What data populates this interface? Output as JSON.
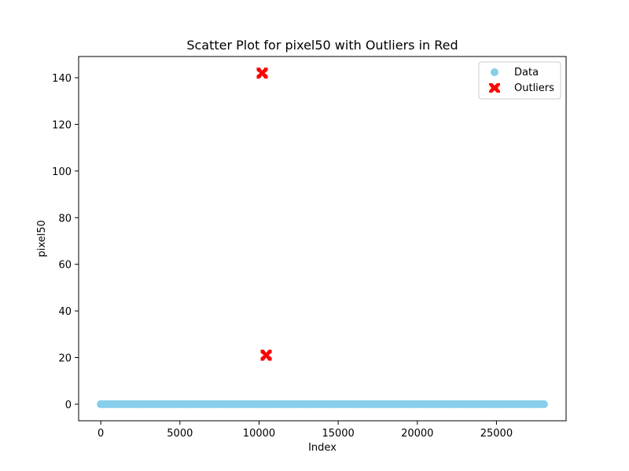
{
  "chart_data": {
    "type": "scatter",
    "title": "Scatter Plot for pixel50 with Outliers in Red",
    "xlabel": "Index",
    "ylabel": "pixel50",
    "xlim": [
      -1400,
      29400
    ],
    "ylim": [
      -7.1,
      149.1
    ],
    "x_ticks": [
      0,
      5000,
      10000,
      15000,
      20000,
      25000
    ],
    "y_ticks": [
      0,
      20,
      40,
      60,
      80,
      100,
      120,
      140
    ],
    "grid": false,
    "legend_position": "top-right",
    "series": [
      {
        "name": "Data",
        "marker": "circle",
        "color": "#87CEEB",
        "x_range": [
          0,
          27999
        ],
        "constant_y": 0,
        "description_values": "dense band of points at y = 0 across all indices"
      },
      {
        "name": "Outliers",
        "marker": "x-filled",
        "color": "#FF0000",
        "points": [
          {
            "x": 10200,
            "y": 142
          },
          {
            "x": 10450,
            "y": 21
          }
        ]
      }
    ]
  }
}
